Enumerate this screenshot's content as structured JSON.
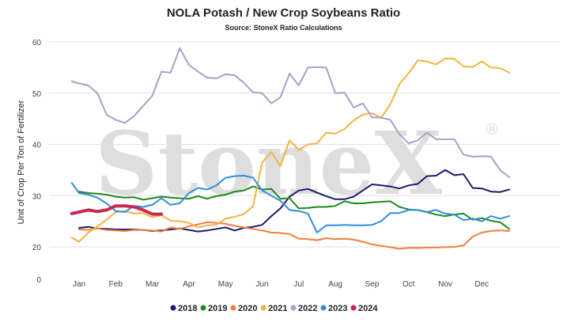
{
  "chart_data": {
    "type": "line",
    "title": "NOLA Potash / New Crop Soybeans Ratio",
    "subtitle": "Source: StoneX Ratio Calculations",
    "ylabel": "Unit of Crop Per Ton of Fertilizer",
    "xlabel": "",
    "ylim": [
      0,
      60
    ],
    "yticks": [
      "0",
      "20",
      "30",
      "40",
      "50",
      "60"
    ],
    "xtick_labels": [
      "Jan",
      "Feb",
      "Mar",
      "Apr",
      "May",
      "Jun",
      "Jul",
      "Aug",
      "Sep",
      "Oct",
      "Nov",
      "Dec"
    ],
    "grid": true,
    "legend_position": "bottom",
    "watermark": "StoneX",
    "series": [
      {
        "name": "2018",
        "color": "#1a1a6b",
        "width": 2,
        "x": [
          0.0,
          0.25,
          0.5,
          0.75,
          1.0,
          1.25,
          1.5,
          1.75,
          2.0,
          2.25,
          2.5,
          2.75,
          3.0,
          3.25,
          3.5,
          3.75,
          4.0,
          4.25,
          4.5,
          4.75,
          5.0,
          5.25,
          5.5,
          5.75,
          6.0,
          6.25,
          6.5,
          6.75,
          7.0,
          7.25,
          7.5,
          7.75,
          8.0,
          8.25,
          8.5,
          8.75,
          9.0,
          9.25,
          9.5,
          9.75,
          10.0,
          10.25,
          10.5,
          10.75,
          11.0,
          11.25,
          11.5,
          11.75
        ],
        "y": [
          23.7,
          23.9,
          23.6,
          23.5,
          23.4,
          23.4,
          23.4,
          23.3,
          23.1,
          23.2,
          23.4,
          23.6,
          23.3,
          23.0,
          23.2,
          23.5,
          23.8,
          23.2,
          23.7,
          23.9,
          24.3,
          26.0,
          27.5,
          29.8,
          31.0,
          31.3,
          30.6,
          29.9,
          29.3,
          29.3,
          29.8,
          31.0,
          32.2,
          32.0,
          31.8,
          31.4,
          32.0,
          32.3,
          33.8,
          33.9,
          35.0,
          34.0,
          34.2,
          31.5,
          31.4,
          30.8,
          30.7,
          31.2
        ]
      },
      {
        "name": "2019",
        "color": "#1e8a1e",
        "width": 2,
        "x": [
          0.0,
          0.25,
          0.5,
          0.75,
          1.0,
          1.25,
          1.5,
          1.75,
          2.0,
          2.25,
          2.5,
          2.75,
          3.0,
          3.25,
          3.5,
          3.75,
          4.0,
          4.25,
          4.5,
          4.75,
          5.0,
          5.25,
          5.5,
          5.75,
          6.0,
          6.25,
          6.5,
          6.75,
          7.0,
          7.25,
          7.5,
          7.75,
          8.0,
          8.25,
          8.5,
          8.75,
          9.0,
          9.25,
          9.5,
          9.75,
          10.0,
          10.25,
          10.5,
          10.75,
          11.0,
          11.25,
          11.5,
          11.75
        ],
        "y": [
          30.8,
          30.5,
          30.4,
          30.2,
          29.8,
          29.6,
          29.7,
          29.2,
          29.5,
          29.8,
          29.6,
          29.5,
          29.4,
          29.9,
          29.4,
          29.9,
          30.2,
          30.8,
          31.0,
          31.8,
          31.2,
          31.3,
          29.4,
          29.5,
          27.5,
          27.6,
          27.8,
          27.8,
          28.0,
          28.9,
          28.5,
          28.5,
          28.7,
          28.8,
          28.9,
          27.8,
          27.3,
          27.2,
          26.8,
          26.3,
          26.0,
          26.3,
          26.5,
          25.3,
          25.6,
          25.1,
          24.8,
          23.5
        ]
      },
      {
        "name": "2020",
        "color": "#f07e3c",
        "width": 2,
        "x": [
          0.0,
          0.25,
          0.5,
          0.75,
          1.0,
          1.25,
          1.5,
          1.75,
          2.0,
          2.25,
          2.5,
          2.75,
          3.0,
          3.25,
          3.5,
          3.75,
          4.0,
          4.25,
          4.5,
          4.75,
          5.0,
          5.25,
          5.5,
          5.75,
          6.0,
          6.25,
          6.5,
          6.75,
          7.0,
          7.25,
          7.5,
          7.75,
          8.0,
          8.25,
          8.5,
          8.75,
          9.0,
          9.25,
          9.5,
          9.75,
          10.0,
          10.25,
          10.5,
          10.75,
          11.0,
          11.25,
          11.5,
          11.75
        ],
        "y": [
          23.4,
          23.3,
          23.6,
          23.3,
          23.2,
          23.1,
          23.3,
          23.3,
          23.2,
          23.0,
          23.8,
          23.5,
          24.0,
          24.4,
          24.8,
          24.7,
          24.5,
          24.1,
          23.8,
          23.5,
          23.2,
          22.8,
          22.7,
          22.5,
          21.6,
          21.5,
          21.3,
          21.7,
          21.5,
          21.6,
          21.4,
          21.0,
          20.5,
          20.2,
          19.8,
          18.8,
          19.4,
          19.4,
          19.5,
          19.6,
          19.8,
          20.0,
          20.3,
          22.0,
          22.8,
          23.1,
          23.2,
          23.1
        ]
      },
      {
        "name": "2021",
        "color": "#f2b441",
        "width": 2,
        "x": [
          -0.2,
          0.0,
          0.25,
          0.5,
          0.75,
          1.0,
          1.25,
          1.5,
          1.75,
          2.0,
          2.25,
          2.5,
          2.75,
          3.0,
          3.25,
          3.5,
          3.75,
          4.0,
          4.25,
          4.5,
          4.75,
          5.0,
          5.25,
          5.5,
          5.75,
          6.0,
          6.25,
          6.5,
          6.75,
          7.0,
          7.25,
          7.5,
          7.75,
          8.0,
          8.25,
          8.5,
          8.75,
          9.0,
          9.25,
          9.5,
          9.75,
          10.0,
          10.25,
          10.5,
          10.75,
          11.0,
          11.25,
          11.5,
          11.75
        ],
        "y": [
          21.8,
          21.0,
          22.8,
          24.0,
          25.3,
          26.8,
          27.0,
          26.5,
          26.6,
          25.8,
          26.2,
          25.1,
          25.0,
          24.7,
          23.8,
          24.2,
          24.3,
          25.5,
          25.9,
          26.4,
          27.9,
          36.5,
          38.5,
          35.8,
          40.8,
          38.9,
          40.0,
          40.2,
          42.3,
          42.1,
          43.0,
          44.7,
          45.8,
          46.1,
          45.2,
          47.8,
          51.8,
          53.9,
          56.4,
          56.2,
          55.6,
          56.8,
          56.7,
          55.2,
          55.1,
          56.2,
          55.0,
          54.9,
          54.0
        ]
      },
      {
        "name": "2022",
        "color": "#a3a3c8",
        "width": 2,
        "x": [
          -0.2,
          0.0,
          0.25,
          0.5,
          0.75,
          1.0,
          1.25,
          1.5,
          1.75,
          2.0,
          2.25,
          2.5,
          2.75,
          3.0,
          3.25,
          3.5,
          3.75,
          4.0,
          4.25,
          4.5,
          4.75,
          5.0,
          5.25,
          5.5,
          5.75,
          6.0,
          6.25,
          6.5,
          6.75,
          7.0,
          7.25,
          7.5,
          7.75,
          8.0,
          8.25,
          8.5,
          8.75,
          9.0,
          9.25,
          9.5,
          9.75,
          10.0,
          10.25,
          10.5,
          10.75,
          11.0,
          11.25,
          11.5,
          11.75
        ],
        "y": [
          52.3,
          51.9,
          51.5,
          50.0,
          45.8,
          44.8,
          44.2,
          45.5,
          47.5,
          49.5,
          54.2,
          54.0,
          58.8,
          55.5,
          54.2,
          53.0,
          52.9,
          53.7,
          53.5,
          52.0,
          50.2,
          50.0,
          48.0,
          49.2,
          53.8,
          51.5,
          55.0,
          55.1,
          55.0,
          50.0,
          50.1,
          47.2,
          48.0,
          45.3,
          45.2,
          44.8,
          42.0,
          40.2,
          40.8,
          42.3,
          41.0,
          41.0,
          41.0,
          38.0,
          37.6,
          37.7,
          37.6,
          35.0,
          33.6
        ]
      },
      {
        "name": "2023",
        "color": "#2f8fe2",
        "width": 2,
        "x": [
          -0.2,
          0.0,
          0.25,
          0.5,
          0.75,
          1.0,
          1.25,
          1.5,
          1.75,
          2.0,
          2.25,
          2.5,
          2.75,
          3.0,
          3.25,
          3.5,
          3.75,
          4.0,
          4.25,
          4.5,
          4.75,
          5.0,
          5.25,
          5.5,
          5.75,
          6.0,
          6.25,
          6.5,
          6.75,
          7.0,
          7.25,
          7.5,
          7.75,
          8.0,
          8.25,
          8.5,
          8.75,
          9.0,
          9.25,
          9.5,
          9.75,
          10.0,
          10.25,
          10.5,
          10.75,
          11.0,
          11.25,
          11.5,
          11.75
        ],
        "y": [
          32.5,
          30.5,
          30.2,
          29.6,
          28.5,
          27.0,
          26.8,
          28.0,
          27.8,
          28.2,
          29.5,
          28.2,
          28.5,
          30.5,
          31.5,
          31.2,
          32.0,
          33.5,
          33.8,
          33.9,
          33.5,
          31.0,
          30.0,
          29.0,
          27.2,
          27.0,
          26.5,
          22.8,
          24.2,
          24.2,
          24.3,
          24.2,
          24.2,
          24.3,
          25.0,
          26.6,
          26.6,
          27.2,
          27.2,
          26.8,
          27.2,
          26.5,
          26.3,
          25.2,
          25.5,
          25.0,
          26.0,
          25.5,
          26.0
        ]
      },
      {
        "name": "2024",
        "color": "#c8284e",
        "width": 4,
        "x": [
          -0.2,
          0.0,
          0.25,
          0.5,
          0.75,
          1.0,
          1.25,
          1.5,
          1.75,
          2.0,
          2.25
        ],
        "y": [
          26.5,
          26.8,
          27.2,
          26.9,
          27.2,
          28.0,
          28.0,
          27.8,
          27.2,
          26.4,
          26.4
        ]
      }
    ]
  }
}
